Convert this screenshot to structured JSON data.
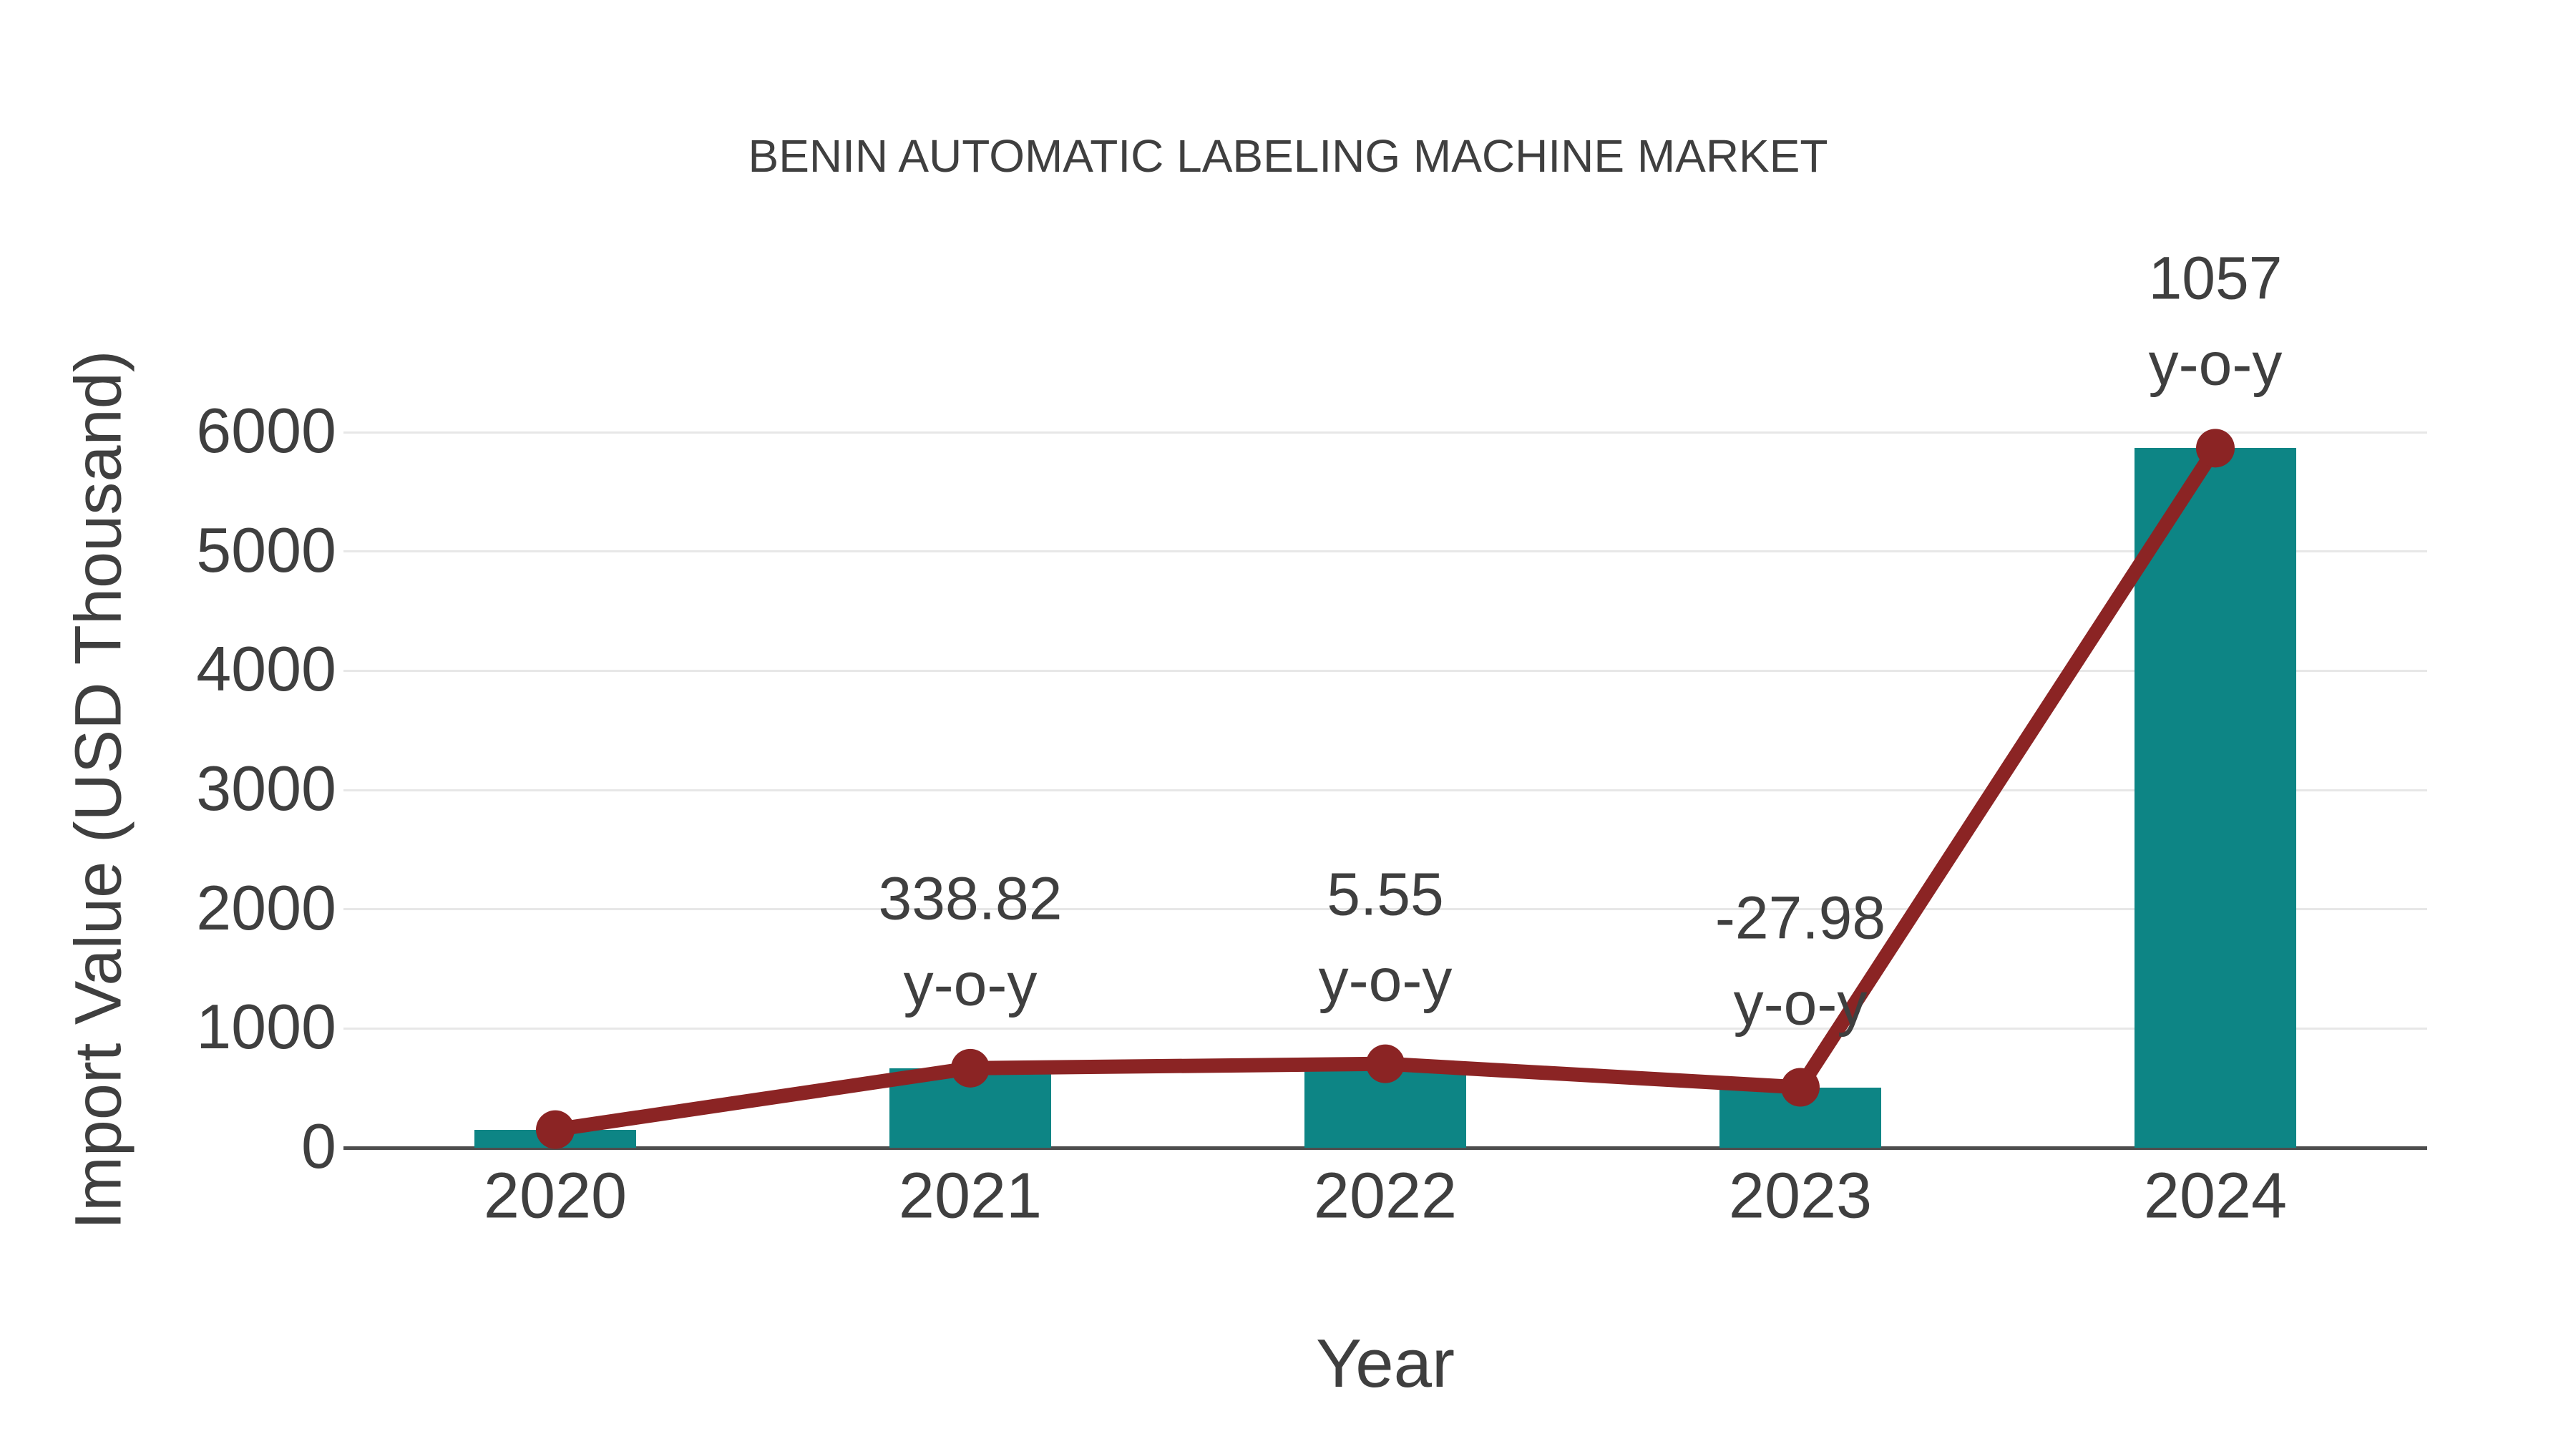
{
  "chart_data": {
    "type": "bar",
    "title": "BENIN AUTOMATIC LABELING MACHINE MARKET",
    "xlabel": "Year",
    "ylabel": "Import Value (USD Thousand)",
    "categories": [
      "2020",
      "2021",
      "2022",
      "2023",
      "2024"
    ],
    "series": [
      {
        "name": "import-value-bars",
        "type": "bar",
        "values": [
          152,
          667,
          704,
          507,
          5866
        ]
      },
      {
        "name": "import-value-line",
        "type": "line",
        "values": [
          152,
          667,
          704,
          507,
          5866
        ]
      }
    ],
    "yoy_annotations": [
      {
        "category": "2021",
        "value_label": "338.82",
        "suffix_label": "y-o-y"
      },
      {
        "category": "2022",
        "value_label": "5.55",
        "suffix_label": "y-o-y"
      },
      {
        "category": "2023",
        "value_label": "-27.98",
        "suffix_label": "y-o-y"
      },
      {
        "category": "2024",
        "value_label": "1057",
        "suffix_label": "y-o-y"
      }
    ],
    "y_ticks": [
      0,
      1000,
      2000,
      3000,
      4000,
      5000,
      6000
    ],
    "ylim": [
      0,
      6000
    ],
    "grid": true,
    "legend": "none",
    "colors": {
      "bar": "#0d8585",
      "line": "#8b2424",
      "marker": "#8b2424",
      "grid": "#e7e7e7",
      "axis": "#4d4d4d",
      "text": "#3f3f3f"
    }
  }
}
